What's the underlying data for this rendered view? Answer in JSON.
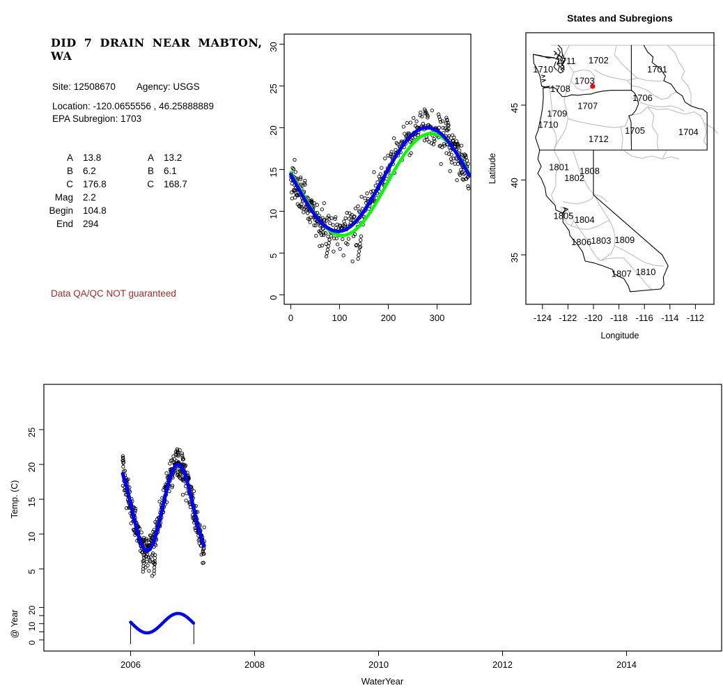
{
  "page": {
    "background": "#FFFFFF"
  },
  "info_panel": {
    "title_line1": "DID 7 DRAIN NEAR MABTON,",
    "title_line2": "WA",
    "site_line": "Site: 12508670",
    "agency_line": "Agency: USGS",
    "location_line": "Location: -120.0655556 , 46.25888889",
    "epa_line": "EPA Subregion: 1703",
    "fit_table": {
      "rows": [
        [
          "A",
          "13.8",
          "A",
          "13.2"
        ],
        [
          "B",
          "6.2",
          "B",
          "6.1"
        ],
        [
          "C",
          "176.8",
          "C",
          "168.7"
        ],
        [
          "Mag",
          "2.2",
          "",
          ""
        ],
        [
          "Begin",
          "104.8",
          "",
          ""
        ],
        [
          "End",
          "294",
          "",
          ""
        ]
      ]
    },
    "warning": "Data QA/QC NOT guaranteed",
    "warning_color": "#A52A2A"
  },
  "chart_data": [
    {
      "id": "seasonal-fit",
      "type": "scatter",
      "title": "",
      "xlabel": "",
      "ylabel": "",
      "xlim": [
        0,
        366
      ],
      "ylim": [
        0,
        30
      ],
      "x_ticks": [
        0,
        100,
        200,
        300
      ],
      "y_ticks": [
        0,
        5,
        10,
        15,
        20,
        25,
        30
      ],
      "grid": false,
      "marker": "open-circle",
      "marker_color": "#000000",
      "series": [
        {
          "name": "fit-green",
          "kind": "sinusoid",
          "color": "#00FF00",
          "A": 13.2,
          "B": 6.1,
          "C": 168.7,
          "period": 365
        },
        {
          "name": "fit-blue",
          "kind": "sinusoid",
          "color": "#0000FF",
          "A": 13.8,
          "B": 6.2,
          "C": 176.8,
          "period": 365
        }
      ],
      "points_note": "daily water temperature vs day-of-water-year; cloud follows blue fit +/- ~1C noise with low winter outliers near days 75 and 140 (min ~4.3) and summer highs to ~22.2"
    },
    {
      "id": "map",
      "type": "map",
      "title": "States and Subregions",
      "xlabel": "Longitude",
      "ylabel": "Latitude",
      "xlim": [
        -125.3,
        -110.4
      ],
      "ylim": [
        31.7,
        49.8
      ],
      "x_ticks": [
        -124,
        -122,
        -120,
        -118,
        -116,
        -114,
        -112
      ],
      "y_ticks": [
        35,
        40,
        45
      ],
      "site_marker": {
        "lon": -120.0655556,
        "lat": 46.25888889,
        "color": "#FF0000"
      },
      "region_labels": [
        {
          "text": "1711",
          "lon": -122.15,
          "lat": 47.95
        },
        {
          "text": "1710",
          "lon": -123.95,
          "lat": 47.4
        },
        {
          "text": "1702",
          "lon": -119.6,
          "lat": 48.0
        },
        {
          "text": "1701",
          "lon": -115.0,
          "lat": 47.4
        },
        {
          "text": "1703",
          "lon": -120.7,
          "lat": 46.62
        },
        {
          "text": "1708",
          "lon": -122.6,
          "lat": 46.1
        },
        {
          "text": "1706",
          "lon": -116.15,
          "lat": 45.5
        },
        {
          "text": "1707",
          "lon": -120.45,
          "lat": 44.95
        },
        {
          "text": "1709",
          "lon": -122.85,
          "lat": 44.45
        },
        {
          "text": "1710",
          "lon": -123.55,
          "lat": 43.7
        },
        {
          "text": "1705",
          "lon": -116.75,
          "lat": 43.3
        },
        {
          "text": "1704",
          "lon": -112.55,
          "lat": 43.2
        },
        {
          "text": "1712",
          "lon": -119.6,
          "lat": 42.75
        },
        {
          "text": "1801",
          "lon": -122.7,
          "lat": 40.85
        },
        {
          "text": "1808",
          "lon": -120.3,
          "lat": 40.6
        },
        {
          "text": "1802",
          "lon": -121.5,
          "lat": 40.15
        },
        {
          "text": "1805",
          "lon": -122.35,
          "lat": 37.6
        },
        {
          "text": "1804",
          "lon": -120.7,
          "lat": 37.35
        },
        {
          "text": "1806",
          "lon": -120.95,
          "lat": 35.85
        },
        {
          "text": "1803",
          "lon": -119.4,
          "lat": 35.95
        },
        {
          "text": "1809",
          "lon": -117.55,
          "lat": 36.0
        },
        {
          "text": "1807",
          "lon": -117.8,
          "lat": 33.75
        },
        {
          "text": "1810",
          "lon": -115.9,
          "lat": 33.85
        }
      ],
      "line_colors": {
        "states": "#000000",
        "subregions": "#BEBEBE"
      }
    },
    {
      "id": "timeseries",
      "type": "scatter",
      "xlabel": "WaterYear",
      "ylabel": "Temp. (C)",
      "ylabel2": "@ Year",
      "xlim": [
        2004.6,
        2015.5
      ],
      "ylim": [
        0,
        30
      ],
      "x_ticks": [
        2006,
        2008,
        2010,
        2012,
        2014
      ],
      "y_ticks": [
        5,
        10,
        15,
        20,
        25
      ],
      "y2_ticks": [
        0,
        10,
        20
      ],
      "y2_minor_ticks": [
        0,
        5,
        10,
        15,
        20
      ],
      "fit": {
        "name": "fit-blue",
        "color": "#0000FF",
        "A": 13.8,
        "B": 6.2,
        "C": 176.8,
        "period": 365
      },
      "observations": {
        "n": 470,
        "seed": 20130607,
        "noise_sd": 1.05,
        "x_start": 2005.872,
        "x_end": 2007.19,
        "clusters": [
          {
            "x0": 2006.2,
            "dx": 0.0035,
            "n": 6,
            "y0": 4.6,
            "dy": 0.4
          },
          {
            "x0": 2006.378,
            "dx": 0.0028,
            "n": 7,
            "y0": 4.3,
            "dy": 0.45
          },
          {
            "x0": 2005.8745,
            "dx": 0.004,
            "n": 4,
            "y0": 21.2,
            "dy": -0.3
          },
          {
            "x0": 2006.752,
            "dx": 0.0045,
            "n": 5,
            "y0": 22.2,
            "dy": -0.2
          },
          {
            "x0": 2006.83,
            "dx": 0.004,
            "n": 4,
            "y0": 21.6,
            "dy": -0.3
          }
        ]
      },
      "inset": {
        "x_start": 2006.0,
        "x_end": 2007.02,
        "scale_ticks": [
          0,
          10,
          20
        ]
      }
    }
  ]
}
